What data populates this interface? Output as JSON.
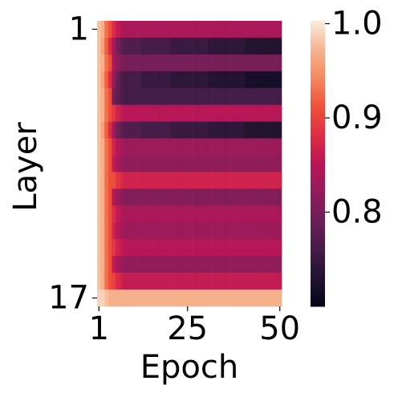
{
  "chart_data": {
    "type": "heatmap",
    "colormap": "rocket",
    "xlabel": "Epoch",
    "ylabel": "Layer",
    "x": [
      1,
      2,
      3,
      4,
      5,
      6,
      7,
      8,
      9,
      10,
      11,
      12,
      13,
      14,
      15,
      16,
      17,
      18,
      19,
      20,
      21,
      22,
      23,
      24,
      25,
      26,
      27,
      28,
      29,
      30,
      31,
      32,
      33,
      34,
      35,
      36,
      37,
      38,
      39,
      40,
      41,
      42,
      43,
      44,
      45,
      46,
      47,
      48,
      49,
      50
    ],
    "y": [
      1,
      2,
      3,
      4,
      5,
      6,
      7,
      8,
      9,
      10,
      11,
      12,
      13,
      14,
      15,
      16,
      17
    ],
    "xlim": [
      0.5,
      50.5
    ],
    "ylim": [
      0.5,
      17.5
    ],
    "xticks": [
      1,
      25,
      50
    ],
    "yticks": [
      1,
      17
    ],
    "colorbar": {
      "lim": [
        0.7,
        1.003
      ],
      "ticks": [
        0.8,
        0.9,
        {
          "value": 1,
          "label": "1.0"
        }
      ]
    },
    "z": [
      [
        0.98,
        0.97,
        0.93,
        0.91,
        0.88,
        0.86,
        0.85,
        0.84,
        0.84,
        0.84,
        0.84,
        0.84,
        0.84,
        0.84,
        0.84,
        0.84,
        0.84,
        0.84,
        0.84,
        0.84,
        0.84,
        0.84,
        0.84,
        0.84,
        0.84,
        0.84,
        0.84,
        0.84,
        0.84,
        0.84,
        0.84,
        0.84,
        0.84,
        0.84,
        0.84,
        0.84,
        0.84,
        0.84,
        0.84,
        0.84,
        0.84,
        0.84,
        0.84,
        0.84,
        0.84,
        0.84,
        0.84,
        0.84,
        0.84,
        0.84
      ],
      [
        0.98,
        0.96,
        0.92,
        0.88,
        0.84,
        0.8,
        0.78,
        0.77,
        0.77,
        0.77,
        0.77,
        0.77,
        0.76,
        0.76,
        0.76,
        0.76,
        0.76,
        0.76,
        0.76,
        0.76,
        0.75,
        0.75,
        0.75,
        0.75,
        0.75,
        0.75,
        0.75,
        0.75,
        0.75,
        0.75,
        0.74,
        0.74,
        0.74,
        0.74,
        0.74,
        0.74,
        0.74,
        0.74,
        0.74,
        0.74,
        0.73,
        0.73,
        0.73,
        0.73,
        0.73,
        0.73,
        0.73,
        0.73,
        0.73,
        0.73
      ],
      [
        0.98,
        0.97,
        0.93,
        0.91,
        0.84,
        0.82,
        0.81,
        0.8,
        0.8,
        0.8,
        0.8,
        0.8,
        0.8,
        0.8,
        0.8,
        0.8,
        0.8,
        0.8,
        0.8,
        0.8,
        0.8,
        0.8,
        0.8,
        0.8,
        0.8,
        0.8,
        0.8,
        0.8,
        0.8,
        0.8,
        0.8,
        0.8,
        0.8,
        0.8,
        0.8,
        0.8,
        0.8,
        0.8,
        0.8,
        0.8,
        0.8,
        0.8,
        0.8,
        0.8,
        0.8,
        0.8,
        0.8,
        0.8,
        0.8,
        0.8
      ],
      [
        0.98,
        0.96,
        0.92,
        0.88,
        0.83,
        0.79,
        0.77,
        0.76,
        0.76,
        0.76,
        0.76,
        0.76,
        0.75,
        0.75,
        0.75,
        0.75,
        0.75,
        0.75,
        0.75,
        0.75,
        0.74,
        0.74,
        0.74,
        0.74,
        0.74,
        0.74,
        0.74,
        0.74,
        0.74,
        0.74,
        0.73,
        0.73,
        0.73,
        0.73,
        0.73,
        0.73,
        0.73,
        0.73,
        0.73,
        0.73,
        0.72,
        0.72,
        0.72,
        0.72,
        0.72,
        0.72,
        0.72,
        0.72,
        0.72,
        0.72
      ],
      [
        0.98,
        0.97,
        0.93,
        0.91,
        0.8,
        0.78,
        0.77,
        0.76,
        0.76,
        0.76,
        0.76,
        0.76,
        0.76,
        0.76,
        0.76,
        0.76,
        0.76,
        0.76,
        0.76,
        0.76,
        0.76,
        0.76,
        0.76,
        0.76,
        0.76,
        0.76,
        0.76,
        0.76,
        0.76,
        0.76,
        0.76,
        0.76,
        0.76,
        0.76,
        0.76,
        0.76,
        0.76,
        0.76,
        0.76,
        0.76,
        0.76,
        0.76,
        0.76,
        0.76,
        0.76,
        0.76,
        0.76,
        0.76,
        0.76,
        0.76
      ],
      [
        0.98,
        0.97,
        0.93,
        0.91,
        0.89,
        0.87,
        0.86,
        0.85,
        0.85,
        0.85,
        0.85,
        0.85,
        0.85,
        0.85,
        0.85,
        0.85,
        0.85,
        0.85,
        0.85,
        0.85,
        0.85,
        0.85,
        0.85,
        0.85,
        0.85,
        0.85,
        0.85,
        0.85,
        0.85,
        0.85,
        0.85,
        0.85,
        0.85,
        0.85,
        0.85,
        0.85,
        0.85,
        0.85,
        0.85,
        0.85,
        0.85,
        0.85,
        0.85,
        0.85,
        0.85,
        0.85,
        0.85,
        0.85,
        0.85,
        0.85
      ],
      [
        0.98,
        0.96,
        0.92,
        0.88,
        0.84,
        0.8,
        0.78,
        0.77,
        0.77,
        0.77,
        0.77,
        0.77,
        0.76,
        0.76,
        0.76,
        0.76,
        0.76,
        0.76,
        0.76,
        0.76,
        0.75,
        0.75,
        0.75,
        0.75,
        0.75,
        0.75,
        0.75,
        0.75,
        0.75,
        0.75,
        0.74,
        0.74,
        0.74,
        0.74,
        0.74,
        0.74,
        0.74,
        0.74,
        0.74,
        0.74,
        0.73,
        0.73,
        0.73,
        0.73,
        0.73,
        0.73,
        0.73,
        0.73,
        0.73,
        0.73
      ],
      [
        0.98,
        0.97,
        0.93,
        0.91,
        0.87,
        0.85,
        0.84,
        0.83,
        0.83,
        0.83,
        0.83,
        0.83,
        0.83,
        0.83,
        0.83,
        0.83,
        0.83,
        0.83,
        0.83,
        0.83,
        0.83,
        0.83,
        0.83,
        0.83,
        0.83,
        0.83,
        0.83,
        0.83,
        0.83,
        0.83,
        0.83,
        0.83,
        0.83,
        0.83,
        0.83,
        0.83,
        0.83,
        0.83,
        0.83,
        0.83,
        0.83,
        0.83,
        0.83,
        0.83,
        0.83,
        0.83,
        0.83,
        0.83,
        0.83,
        0.83
      ],
      [
        0.98,
        0.97,
        0.93,
        0.91,
        0.86,
        0.84,
        0.83,
        0.82,
        0.82,
        0.82,
        0.82,
        0.82,
        0.82,
        0.82,
        0.82,
        0.82,
        0.82,
        0.82,
        0.82,
        0.82,
        0.82,
        0.82,
        0.82,
        0.82,
        0.82,
        0.82,
        0.82,
        0.82,
        0.82,
        0.82,
        0.82,
        0.82,
        0.82,
        0.82,
        0.82,
        0.82,
        0.82,
        0.82,
        0.82,
        0.82,
        0.82,
        0.82,
        0.82,
        0.82,
        0.82,
        0.82,
        0.82,
        0.82,
        0.82,
        0.82
      ],
      [
        0.98,
        0.97,
        0.93,
        0.91,
        0.91,
        0.89,
        0.88,
        0.87,
        0.87,
        0.87,
        0.87,
        0.87,
        0.87,
        0.87,
        0.87,
        0.87,
        0.87,
        0.87,
        0.87,
        0.87,
        0.87,
        0.87,
        0.87,
        0.87,
        0.87,
        0.87,
        0.87,
        0.87,
        0.87,
        0.87,
        0.87,
        0.87,
        0.87,
        0.87,
        0.87,
        0.87,
        0.87,
        0.87,
        0.87,
        0.87,
        0.87,
        0.87,
        0.87,
        0.87,
        0.87,
        0.87,
        0.87,
        0.87,
        0.87,
        0.87
      ],
      [
        0.98,
        0.97,
        0.93,
        0.91,
        0.85,
        0.83,
        0.82,
        0.81,
        0.81,
        0.81,
        0.81,
        0.81,
        0.81,
        0.81,
        0.81,
        0.81,
        0.81,
        0.81,
        0.81,
        0.81,
        0.81,
        0.81,
        0.81,
        0.81,
        0.81,
        0.81,
        0.81,
        0.81,
        0.81,
        0.81,
        0.81,
        0.81,
        0.81,
        0.81,
        0.81,
        0.81,
        0.81,
        0.81,
        0.81,
        0.81,
        0.81,
        0.81,
        0.81,
        0.81,
        0.81,
        0.81,
        0.81,
        0.81,
        0.81,
        0.81
      ],
      [
        0.98,
        0.97,
        0.93,
        0.91,
        0.88,
        0.86,
        0.85,
        0.84,
        0.84,
        0.84,
        0.84,
        0.84,
        0.84,
        0.84,
        0.84,
        0.84,
        0.84,
        0.84,
        0.84,
        0.84,
        0.84,
        0.84,
        0.84,
        0.84,
        0.84,
        0.84,
        0.84,
        0.84,
        0.84,
        0.84,
        0.84,
        0.84,
        0.84,
        0.84,
        0.84,
        0.84,
        0.84,
        0.84,
        0.84,
        0.84,
        0.84,
        0.84,
        0.84,
        0.84,
        0.84,
        0.84,
        0.84,
        0.84,
        0.84,
        0.84
      ],
      [
        0.98,
        0.97,
        0.93,
        0.91,
        0.87,
        0.85,
        0.84,
        0.83,
        0.83,
        0.83,
        0.83,
        0.83,
        0.83,
        0.83,
        0.83,
        0.83,
        0.83,
        0.83,
        0.83,
        0.83,
        0.83,
        0.83,
        0.83,
        0.83,
        0.83,
        0.83,
        0.83,
        0.83,
        0.83,
        0.83,
        0.83,
        0.83,
        0.83,
        0.83,
        0.83,
        0.83,
        0.83,
        0.83,
        0.83,
        0.83,
        0.83,
        0.83,
        0.83,
        0.83,
        0.83,
        0.83,
        0.83,
        0.83,
        0.83,
        0.83
      ],
      [
        0.98,
        0.97,
        0.93,
        0.91,
        0.89,
        0.87,
        0.86,
        0.85,
        0.85,
        0.85,
        0.85,
        0.85,
        0.85,
        0.85,
        0.85,
        0.85,
        0.85,
        0.85,
        0.85,
        0.85,
        0.85,
        0.85,
        0.85,
        0.85,
        0.85,
        0.85,
        0.85,
        0.85,
        0.85,
        0.85,
        0.85,
        0.85,
        0.85,
        0.85,
        0.85,
        0.85,
        0.85,
        0.85,
        0.85,
        0.85,
        0.85,
        0.85,
        0.85,
        0.85,
        0.85,
        0.85,
        0.85,
        0.85,
        0.85,
        0.85
      ],
      [
        0.98,
        0.97,
        0.93,
        0.91,
        0.86,
        0.84,
        0.83,
        0.82,
        0.82,
        0.82,
        0.82,
        0.82,
        0.82,
        0.82,
        0.82,
        0.82,
        0.82,
        0.82,
        0.82,
        0.82,
        0.82,
        0.82,
        0.82,
        0.82,
        0.82,
        0.82,
        0.82,
        0.82,
        0.82,
        0.82,
        0.82,
        0.82,
        0.82,
        0.82,
        0.82,
        0.82,
        0.82,
        0.82,
        0.82,
        0.82,
        0.82,
        0.82,
        0.82,
        0.82,
        0.82,
        0.82,
        0.82,
        0.82,
        0.82,
        0.82
      ],
      [
        0.98,
        0.97,
        0.93,
        0.91,
        0.9,
        0.88,
        0.87,
        0.86,
        0.86,
        0.86,
        0.86,
        0.86,
        0.86,
        0.86,
        0.86,
        0.86,
        0.86,
        0.86,
        0.86,
        0.86,
        0.86,
        0.86,
        0.86,
        0.86,
        0.86,
        0.86,
        0.86,
        0.86,
        0.86,
        0.86,
        0.86,
        0.86,
        0.86,
        0.86,
        0.86,
        0.86,
        0.86,
        0.86,
        0.86,
        0.86,
        0.86,
        0.86,
        0.86,
        0.86,
        0.86,
        0.86,
        0.86,
        0.86,
        0.86,
        0.86
      ],
      [
        0.99,
        0.99,
        0.98,
        0.97,
        0.97,
        0.97,
        0.97,
        0.97,
        0.97,
        0.97,
        0.97,
        0.97,
        0.97,
        0.97,
        0.97,
        0.97,
        0.97,
        0.97,
        0.97,
        0.97,
        0.97,
        0.97,
        0.97,
        0.97,
        0.97,
        0.97,
        0.97,
        0.97,
        0.97,
        0.97,
        0.97,
        0.97,
        0.97,
        0.97,
        0.97,
        0.97,
        0.97,
        0.97,
        0.97,
        0.97,
        0.97,
        0.97,
        0.97,
        0.97,
        0.97,
        0.97,
        0.97,
        0.97,
        0.97,
        0.97
      ]
    ]
  }
}
